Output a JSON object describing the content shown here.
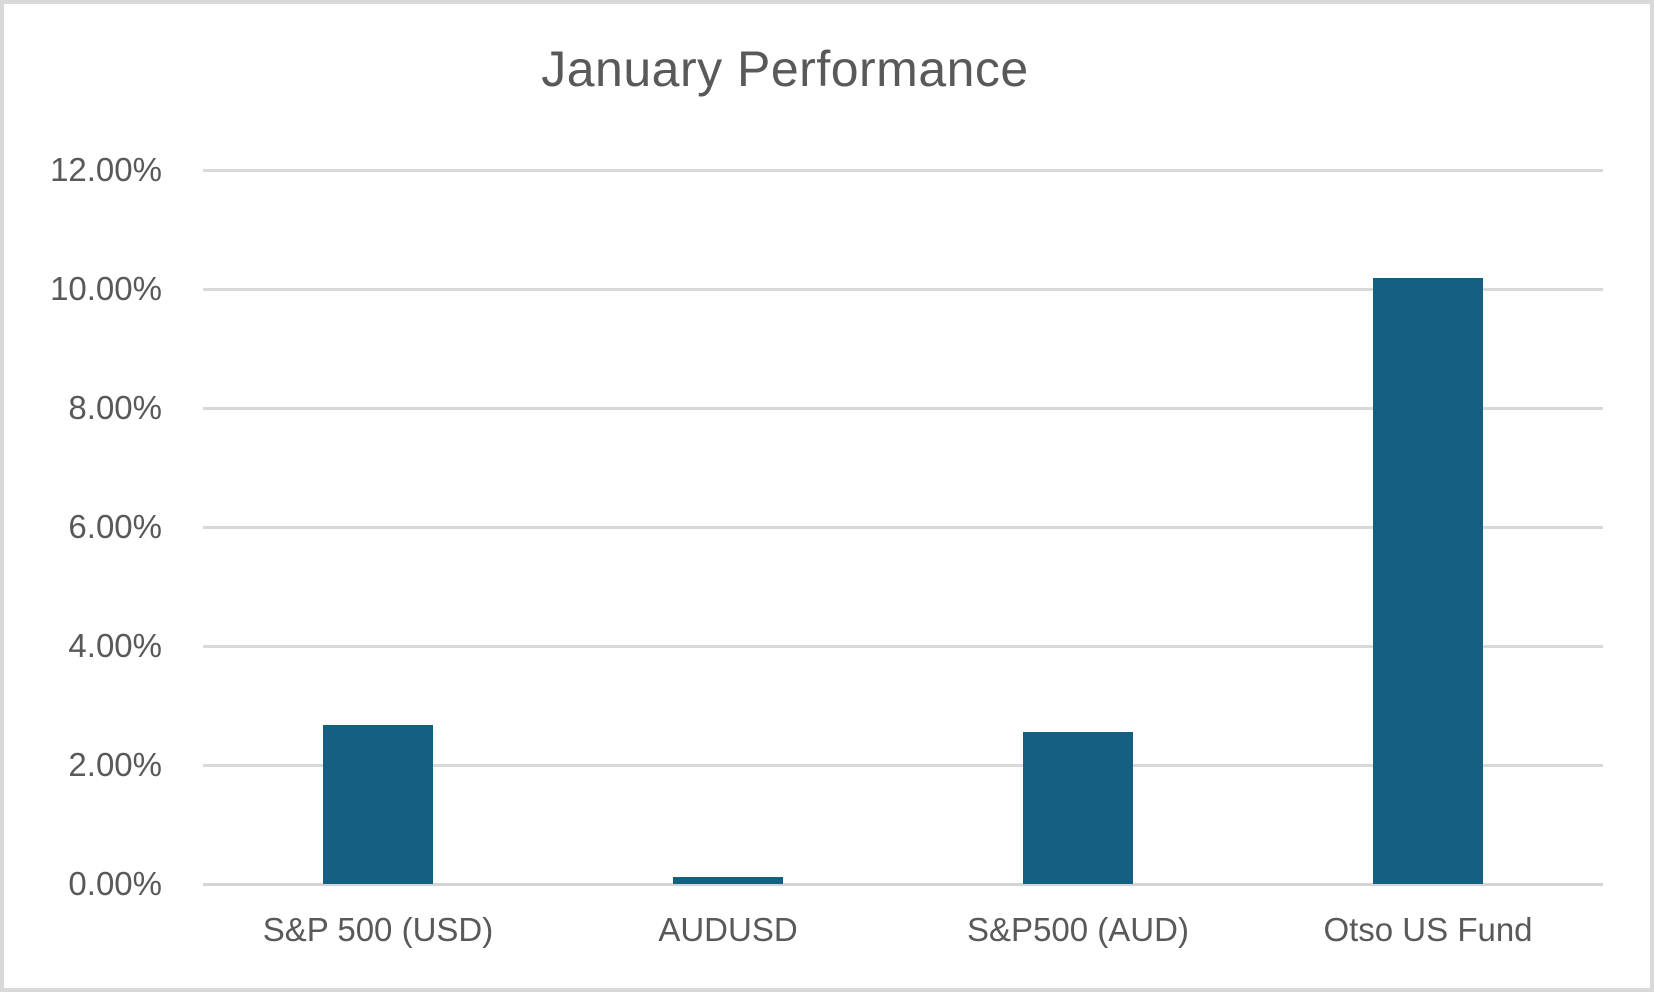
{
  "title": "January Performance",
  "colors": {
    "bar_fill": "#156082",
    "gridline": "#D9D9D9",
    "axis_baseline": "#D4D4D4",
    "text": "#595959",
    "frame_border": "#D9D9D9",
    "background": "#FFFFFF"
  },
  "chart_data": {
    "type": "bar",
    "title": "January Performance",
    "categories": [
      "S&P 500 (USD)",
      "AUDUSD",
      "S&P500 (AUD)",
      "Otso US Fund"
    ],
    "values": [
      2.68,
      0.12,
      2.55,
      10.18
    ],
    "values_unit": "percent",
    "series_color": "#156082",
    "xlabel": "",
    "ylabel": "",
    "ylim": [
      0,
      12
    ],
    "y_step": 2,
    "y_tick_labels": [
      "0.00%",
      "2.00%",
      "4.00%",
      "6.00%",
      "8.00%",
      "10.00%",
      "12.00%"
    ],
    "grid": true,
    "legend_position": "none",
    "data_labels_shown": false
  }
}
